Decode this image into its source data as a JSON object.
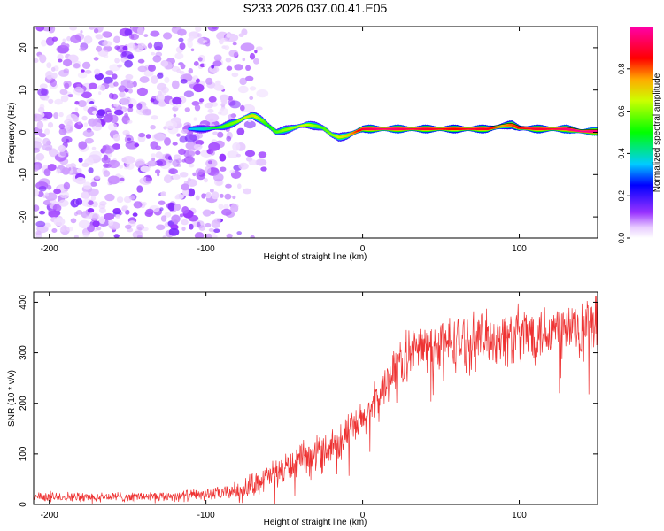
{
  "title": "S233.2026.037.00.41.E05",
  "colors": {
    "spectrogram_low": "#9933ff",
    "ridge_high": "#ff0000",
    "snr_line": "#ee3333",
    "axis": "#000000"
  },
  "chart_data": [
    {
      "type": "heatmap",
      "title": "S233.2026.037.00.41.E05",
      "xlabel": "Height of straight line (km)",
      "ylabel": "Frequency (Hz)",
      "xlim": [
        -210,
        150
      ],
      "ylim": [
        -25,
        25
      ],
      "xticks": [
        -200,
        -100,
        0,
        100
      ],
      "yticks": [
        -20,
        -10,
        0,
        10,
        20
      ],
      "colorbar": {
        "label": "Normalized spectral amplitude",
        "range": [
          0,
          1
        ],
        "ticks": [
          "0.0",
          "0.2",
          "0.4",
          "0.6",
          "0.8"
        ]
      },
      "noise_region_x": [
        -210,
        -75
      ],
      "ridge": {
        "x": [
          -110,
          -100,
          -90,
          -80,
          -75,
          -70,
          -65,
          -60,
          -55,
          -50,
          -45,
          -40,
          -35,
          -30,
          -25,
          -20,
          -15,
          -10,
          -5,
          0,
          10,
          20,
          30,
          40,
          50,
          60,
          70,
          80,
          90,
          95,
          100,
          110,
          120,
          130,
          140,
          150
        ],
        "frequency": [
          0.8,
          0.8,
          1.2,
          2.5,
          3.5,
          4.0,
          3.0,
          1.5,
          0.0,
          0.5,
          1.0,
          1.5,
          1.8,
          1.5,
          1.0,
          -0.5,
          -1.2,
          -0.8,
          0.0,
          0.8,
          0.8,
          0.8,
          0.8,
          0.8,
          0.8,
          0.8,
          0.8,
          0.8,
          1.5,
          1.8,
          1.0,
          0.8,
          0.8,
          0.8,
          0.2,
          0.2
        ],
        "amplitude": [
          0.35,
          0.4,
          0.55,
          0.6,
          0.65,
          0.7,
          0.6,
          0.5,
          0.55,
          0.6,
          0.62,
          0.65,
          0.65,
          0.6,
          0.55,
          0.6,
          0.65,
          0.7,
          0.8,
          0.9,
          0.95,
          0.95,
          0.92,
          0.9,
          0.88,
          0.85,
          0.9,
          0.88,
          0.75,
          0.8,
          0.85,
          0.9,
          0.9,
          0.95,
          0.98,
          0.98
        ]
      }
    },
    {
      "type": "line",
      "xlabel": "Height of straight line (km)",
      "ylabel": "SNR (10 * v/v)",
      "xlim": [
        -210,
        150
      ],
      "ylim": [
        0,
        420
      ],
      "xticks": [
        -200,
        -100,
        0,
        100
      ],
      "yticks": [
        0,
        100,
        200,
        300,
        400
      ],
      "series": [
        {
          "name": "SNR",
          "x": [
            -210,
            -190,
            -170,
            -150,
            -130,
            -110,
            -90,
            -80,
            -70,
            -60,
            -50,
            -40,
            -30,
            -20,
            -10,
            0,
            10,
            20,
            30,
            40,
            50,
            60,
            70,
            80,
            90,
            100,
            110,
            120,
            130,
            140,
            150
          ],
          "mean": [
            15,
            15,
            15,
            15,
            16,
            18,
            22,
            28,
            40,
            55,
            70,
            85,
            100,
            115,
            140,
            165,
            210,
            270,
            300,
            310,
            315,
            320,
            325,
            328,
            330,
            335,
            340,
            345,
            345,
            350,
            350
          ],
          "spread": [
            12,
            12,
            12,
            12,
            12,
            14,
            16,
            20,
            28,
            32,
            38,
            40,
            45,
            45,
            45,
            45,
            50,
            55,
            60,
            60,
            65,
            65,
            65,
            65,
            70,
            70,
            70,
            70,
            75,
            75,
            75
          ]
        }
      ]
    }
  ]
}
